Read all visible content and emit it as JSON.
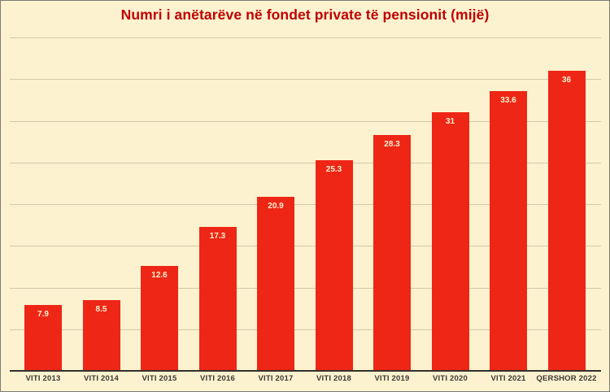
{
  "chart_data": {
    "type": "bar",
    "title": "Numri i anëtarëve në fondet private të pensionit (mijë)",
    "categories": [
      "VITI 2013",
      "VITI 2014",
      "VITI 2015",
      "VITI 2016",
      "VITI 2017",
      "VITI 2018",
      "VITI 2019",
      "VITI 2020",
      "VITI 2021",
      "QERSHOR 2022"
    ],
    "values": [
      7.9,
      8.5,
      12.6,
      17.3,
      20.9,
      25.3,
      28.3,
      31,
      33.6,
      36
    ],
    "value_labels": [
      "7.9",
      "8.5",
      "12.6",
      "17.3",
      "20.9",
      "25.3",
      "28.3",
      "31",
      "33.6",
      "36"
    ],
    "xlabel": "",
    "ylabel": "",
    "ylim": [
      0,
      40
    ],
    "gridline_step": 5,
    "grid": "horizontal",
    "legend": "none",
    "data_labels": "inside-top",
    "colors": {
      "background": "#fdf2cf",
      "bar": "#ee2616",
      "title": "#c00000",
      "bar_label": "#fdf2cf",
      "axis_label": "#3b3833",
      "gridline": "#d2c9ab",
      "axis_line": "#34302a"
    }
  }
}
